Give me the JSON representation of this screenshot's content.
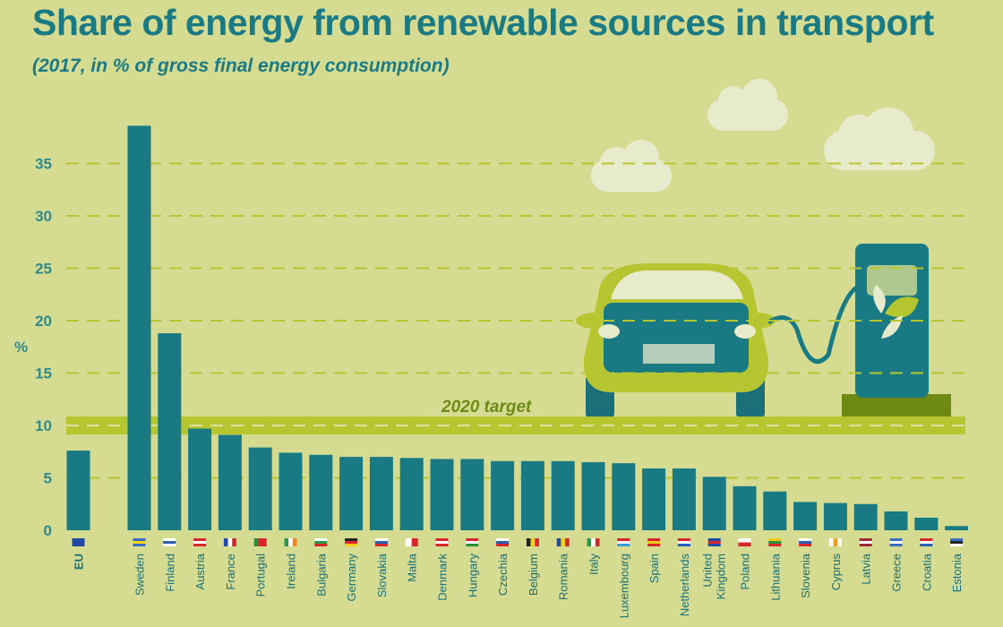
{
  "colors": {
    "background": "#d5dc92",
    "bar": "#1a7a84",
    "target_band": "#b6c630",
    "title": "#1a7a84"
  },
  "chart_data": {
    "type": "bar",
    "title": "Share of energy from renewable sources in transport",
    "subtitle": "(2017, in % of gross final energy consumption)",
    "ylabel": "%",
    "ylim": [
      0,
      40
    ],
    "yticks": [
      0,
      5,
      10,
      15,
      20,
      25,
      30,
      35
    ],
    "grid": true,
    "categories": [
      "EU",
      "Sweden",
      "Finland",
      "Austria",
      "France",
      "Portugal",
      "Ireland",
      "Bulgaria",
      "Germany",
      "Slovakia",
      "Malta",
      "Denmark",
      "Hungary",
      "Czechia",
      "Belgium",
      "Romania",
      "Italy",
      "Luxembourg",
      "Spain",
      "Netherlands",
      "United Kingdom",
      "Poland",
      "Lithuania",
      "Slovenia",
      "Cyprus",
      "Latvia",
      "Greece",
      "Croatia",
      "Estonia"
    ],
    "values": [
      7.6,
      38.6,
      18.8,
      9.7,
      9.1,
      7.9,
      7.4,
      7.2,
      7.0,
      7.0,
      6.9,
      6.8,
      6.8,
      6.6,
      6.6,
      6.6,
      6.5,
      6.4,
      5.9,
      5.9,
      5.1,
      4.2,
      3.7,
      2.7,
      2.6,
      2.5,
      1.8,
      1.2,
      0.4
    ],
    "target": {
      "label": "2020 target",
      "value": 10
    },
    "flags": [
      [
        "#1f4aa8"
      ],
      [
        "#3a6fc0",
        "#f2d21a",
        "#3a6fc0"
      ],
      [
        "#ffffff",
        "#2a5db3",
        "#ffffff"
      ],
      [
        "#d8262c",
        "#ffffff",
        "#d8262c"
      ],
      [
        "#1f4aa8",
        "#ffffff",
        "#d8262c"
      ],
      [
        "#2a8f3a",
        "#d8262c",
        "#d8262c"
      ],
      [
        "#2a9a4a",
        "#ffffff",
        "#f08a1c"
      ],
      [
        "#ffffff",
        "#2a9a4a",
        "#d8262c"
      ],
      [
        "#222222",
        "#d8262c",
        "#f2c81a"
      ],
      [
        "#ffffff",
        "#2a5db3",
        "#d8262c"
      ],
      [
        "#ffffff",
        "#d8262c"
      ],
      [
        "#d8262c",
        "#ffffff",
        "#d8262c"
      ],
      [
        "#d8262c",
        "#ffffff",
        "#2a8f3a"
      ],
      [
        "#ffffff",
        "#2a5db3",
        "#d8262c"
      ],
      [
        "#222222",
        "#f2d21a",
        "#d8262c"
      ],
      [
        "#1f4aa8",
        "#f2d21a",
        "#d8262c"
      ],
      [
        "#2a9a4a",
        "#ffffff",
        "#d8262c"
      ],
      [
        "#d8262c",
        "#ffffff",
        "#3a9ad8"
      ],
      [
        "#d8262c",
        "#f2c81a",
        "#d8262c"
      ],
      [
        "#d8262c",
        "#ffffff",
        "#2a5db3"
      ],
      [
        "#1f4aa8",
        "#d8262c",
        "#1f4aa8"
      ],
      [
        "#ffffff",
        "#d8262c"
      ],
      [
        "#f2c81a",
        "#2a8f3a",
        "#d8262c"
      ],
      [
        "#ffffff",
        "#2a5db3",
        "#d8262c"
      ],
      [
        "#ffffff",
        "#f0a020",
        "#ffffff"
      ],
      [
        "#9e2a36",
        "#ffffff",
        "#9e2a36"
      ],
      [
        "#3a6fc0",
        "#ffffff",
        "#3a6fc0"
      ],
      [
        "#d8262c",
        "#ffffff",
        "#2a5db3"
      ],
      [
        "#3a6fc0",
        "#222222",
        "#ffffff"
      ]
    ]
  }
}
